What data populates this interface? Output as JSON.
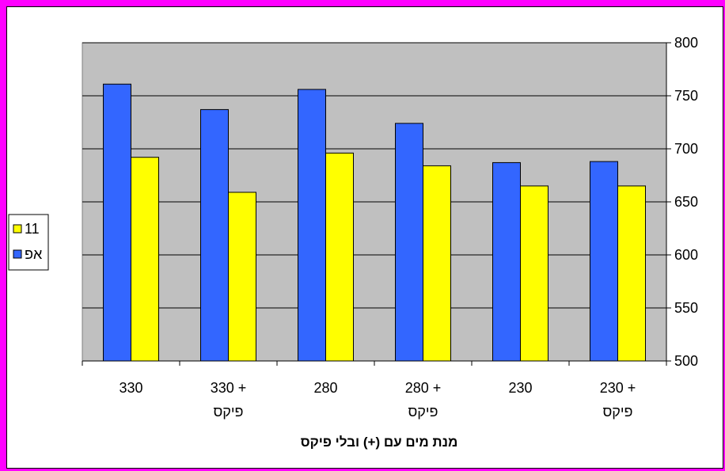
{
  "colors": {
    "background": "#ff00ff",
    "plot_area": "#c0c0c0",
    "series_af": "#3366ff",
    "series_11": "#ffff00"
  },
  "chart_data": {
    "type": "bar",
    "categories": [
      [
        "330"
      ],
      [
        "+ 330",
        "פיקס"
      ],
      [
        "280"
      ],
      [
        "+ 280",
        "פיקס"
      ],
      [
        "230"
      ],
      [
        "+ 230",
        "פיקס"
      ]
    ],
    "series": [
      {
        "name": "אפ",
        "color": "#3366ff",
        "values": [
          761,
          737,
          756,
          724,
          687,
          688
        ]
      },
      {
        "name": "11",
        "color": "#ffff00",
        "values": [
          692,
          659,
          696,
          684,
          665,
          665
        ]
      }
    ],
    "xlabel": "מנת מים עם (+) ובלי פיקס",
    "ylabel": "",
    "ylim": [
      500,
      800
    ],
    "yticks": [
      500,
      550,
      600,
      650,
      700,
      750,
      800
    ],
    "y_axis_side": "right",
    "grid": true,
    "legend_position": "left",
    "legend_order": [
      "11",
      "אפ"
    ]
  }
}
